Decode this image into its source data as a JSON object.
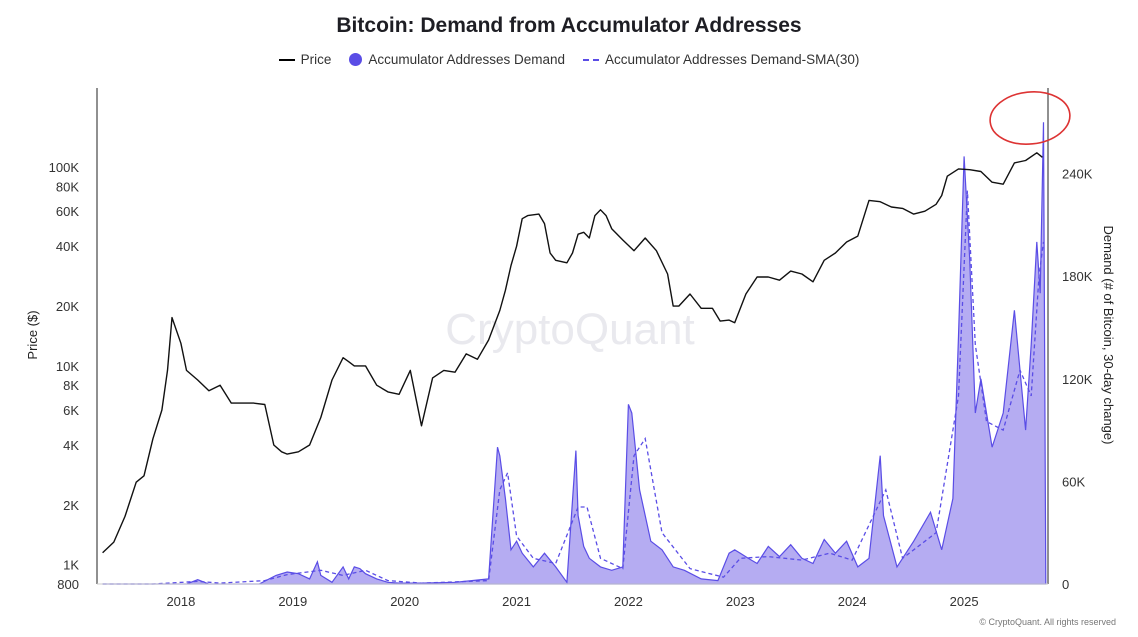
{
  "chart_data": {
    "type": "line",
    "title": "Bitcoin: Demand from Accumulator Addresses",
    "legend": {
      "placement": "top-center",
      "items": [
        "Price",
        "Accumulator Addresses Demand",
        "Accumulator Addresses Demand-SMA(30)"
      ]
    },
    "ylabel_left": "Price ($)",
    "ylabel_right": "Demand (# of Bitcoin, 30-day change)",
    "left_axis": {
      "scale": "log",
      "ylim": [
        800,
        250000
      ],
      "ticks": [
        {
          "value": 800,
          "label": "800"
        },
        {
          "value": 1000,
          "label": "1K"
        },
        {
          "value": 2000,
          "label": "2K"
        },
        {
          "value": 4000,
          "label": "4K"
        },
        {
          "value": 6000,
          "label": "6K"
        },
        {
          "value": 8000,
          "label": "8K"
        },
        {
          "value": 10000,
          "label": "10K"
        },
        {
          "value": 20000,
          "label": "20K"
        },
        {
          "value": 40000,
          "label": "40K"
        },
        {
          "value": 60000,
          "label": "60K"
        },
        {
          "value": 80000,
          "label": "80K"
        },
        {
          "value": 100000,
          "label": "100K"
        }
      ]
    },
    "right_axis": {
      "scale": "linear",
      "ylim": [
        0,
        290000
      ],
      "ticks": [
        {
          "value": 0,
          "label": "0"
        },
        {
          "value": 60000,
          "label": "60K"
        },
        {
          "value": 120000,
          "label": "120K"
        },
        {
          "value": 180000,
          "label": "180K"
        },
        {
          "value": 240000,
          "label": "240K"
        }
      ]
    },
    "x_axis": {
      "ticks": [
        "2018",
        "2019",
        "2020",
        "2021",
        "2022",
        "2023",
        "2024",
        "2025"
      ],
      "xlim": [
        2017.3,
        2025.8
      ]
    },
    "series": [
      {
        "name": "Price",
        "axis": "left",
        "color": "#111111",
        "x": [
          2017.35,
          2017.45,
          2017.55,
          2017.65,
          2017.72,
          2017.8,
          2017.88,
          2017.93,
          2017.97,
          2018.05,
          2018.1,
          2018.2,
          2018.3,
          2018.4,
          2018.5,
          2018.6,
          2018.7,
          2018.8,
          2018.88,
          2018.95,
          2019.0,
          2019.1,
          2019.2,
          2019.3,
          2019.4,
          2019.5,
          2019.55,
          2019.6,
          2019.7,
          2019.8,
          2019.9,
          2020.0,
          2020.1,
          2020.2,
          2020.3,
          2020.4,
          2020.5,
          2020.6,
          2020.7,
          2020.8,
          2020.9,
          2020.95,
          2021.0,
          2021.05,
          2021.1,
          2021.15,
          2021.25,
          2021.3,
          2021.35,
          2021.4,
          2021.5,
          2021.55,
          2021.6,
          2021.65,
          2021.7,
          2021.75,
          2021.8,
          2021.85,
          2021.9,
          2022.0,
          2022.1,
          2022.2,
          2022.3,
          2022.4,
          2022.45,
          2022.5,
          2022.6,
          2022.7,
          2022.8,
          2022.87,
          2022.95,
          2023.0,
          2023.1,
          2023.2,
          2023.3,
          2023.4,
          2023.5,
          2023.6,
          2023.7,
          2023.8,
          2023.9,
          2024.0,
          2024.1,
          2024.2,
          2024.3,
          2024.4,
          2024.5,
          2024.6,
          2024.7,
          2024.8,
          2024.85,
          2024.9,
          2025.0,
          2025.1,
          2025.2,
          2025.3,
          2025.4,
          2025.5,
          2025.6,
          2025.7,
          2025.75
        ],
        "y": [
          1150,
          1300,
          1750,
          2600,
          2800,
          4300,
          6000,
          9500,
          17500,
          13000,
          9500,
          8500,
          7500,
          8000,
          6500,
          6500,
          6500,
          6400,
          4000,
          3700,
          3600,
          3700,
          4000,
          5500,
          8500,
          11000,
          10500,
          10000,
          10000,
          8000,
          7400,
          7200,
          9500,
          5000,
          8700,
          9500,
          9300,
          11500,
          10800,
          13500,
          19000,
          24000,
          32000,
          40000,
          55000,
          57000,
          58000,
          52000,
          37000,
          34000,
          33000,
          37000,
          46000,
          47000,
          44000,
          57000,
          61000,
          57000,
          49000,
          43000,
          38000,
          44000,
          38000,
          29000,
          20000,
          20000,
          23000,
          19500,
          19500,
          16800,
          17000,
          16500,
          23000,
          28000,
          28000,
          27000,
          30000,
          29000,
          26500,
          34000,
          37000,
          42000,
          45000,
          68000,
          67000,
          63000,
          62000,
          58000,
          60000,
          65000,
          72000,
          90000,
          98000,
          97000,
          95000,
          84000,
          82000,
          105000,
          108000,
          118000,
          112000
        ]
      },
      {
        "name": "Accumulator Addresses Demand",
        "axis": "right",
        "color": "#5a4de6",
        "x": [
          2017.35,
          2017.8,
          2018.1,
          2018.2,
          2018.3,
          2018.5,
          2018.75,
          2018.9,
          2019.0,
          2019.1,
          2019.2,
          2019.27,
          2019.3,
          2019.4,
          2019.5,
          2019.55,
          2019.6,
          2019.65,
          2019.7,
          2019.8,
          2019.9,
          2020.0,
          2020.2,
          2020.5,
          2020.8,
          2020.88,
          2020.9,
          2020.95,
          2021.0,
          2021.05,
          2021.1,
          2021.2,
          2021.3,
          2021.4,
          2021.5,
          2021.58,
          2021.6,
          2021.65,
          2021.7,
          2021.8,
          2021.9,
          2022.0,
          2022.05,
          2022.08,
          2022.15,
          2022.25,
          2022.35,
          2022.45,
          2022.55,
          2022.7,
          2022.85,
          2022.95,
          2023.0,
          2023.05,
          2023.12,
          2023.2,
          2023.3,
          2023.4,
          2023.5,
          2023.6,
          2023.7,
          2023.8,
          2023.9,
          2024.0,
          2024.1,
          2024.2,
          2024.3,
          2024.33,
          2024.45,
          2024.6,
          2024.75,
          2024.85,
          2024.95,
          2025.0,
          2025.05,
          2025.1,
          2025.15,
          2025.2,
          2025.3,
          2025.4,
          2025.5,
          2025.6,
          2025.65,
          2025.7,
          2025.73,
          2025.76,
          2025.78
        ],
        "y": [
          0,
          0,
          0,
          2500,
          0,
          0,
          0,
          5000,
          7000,
          6000,
          3000,
          13000,
          5000,
          1000,
          10000,
          3000,
          10000,
          9000,
          6000,
          3000,
          1000,
          500,
          500,
          1000,
          3000,
          80000,
          75000,
          50000,
          20000,
          25000,
          18000,
          10000,
          18000,
          10000,
          1000,
          78000,
          40000,
          22000,
          15000,
          10000,
          8000,
          10000,
          105000,
          100000,
          55000,
          25000,
          20000,
          10000,
          8000,
          3000,
          2000,
          18000,
          20000,
          18000,
          15000,
          12000,
          22000,
          16000,
          23000,
          15000,
          12000,
          26000,
          18000,
          25000,
          10000,
          15000,
          75000,
          40000,
          10000,
          25000,
          42000,
          20000,
          50000,
          145000,
          250000,
          190000,
          100000,
          120000,
          80000,
          100000,
          160000,
          90000,
          140000,
          200000,
          170000,
          270000,
          0
        ]
      },
      {
        "name": "Accumulator Addresses Demand-SMA(30)",
        "axis": "right",
        "color": "#5a4de6",
        "dashed": true,
        "x": [
          2017.35,
          2017.8,
          2018.2,
          2018.4,
          2018.8,
          2019.0,
          2019.3,
          2019.5,
          2019.7,
          2019.9,
          2020.2,
          2020.8,
          2020.9,
          2020.97,
          2021.05,
          2021.2,
          2021.4,
          2021.6,
          2021.68,
          2021.8,
          2022.0,
          2022.1,
          2022.2,
          2022.35,
          2022.6,
          2022.9,
          2023.05,
          2023.3,
          2023.6,
          2023.85,
          2024.05,
          2024.35,
          2024.5,
          2024.8,
          2025.0,
          2025.08,
          2025.15,
          2025.25,
          2025.4,
          2025.55,
          2025.65,
          2025.72,
          2025.76
        ],
        "y": [
          0,
          0,
          1500,
          500,
          2000,
          5500,
          8000,
          5000,
          8000,
          2000,
          500,
          2000,
          55000,
          65000,
          28000,
          15000,
          12000,
          45000,
          45000,
          15000,
          9000,
          75000,
          85000,
          30000,
          9000,
          4000,
          15000,
          16000,
          14000,
          18000,
          14000,
          55000,
          15000,
          30000,
          110000,
          230000,
          140000,
          95000,
          90000,
          125000,
          110000,
          180000,
          200000
        ]
      }
    ],
    "annotations": [
      {
        "type": "hand-drawn circle",
        "color": "#d33",
        "around": "Price near 2025.5–2025.75"
      }
    ],
    "watermark": "CryptoQuant",
    "credit": "© CryptoQuant. All rights reserved",
    "grid": false
  }
}
